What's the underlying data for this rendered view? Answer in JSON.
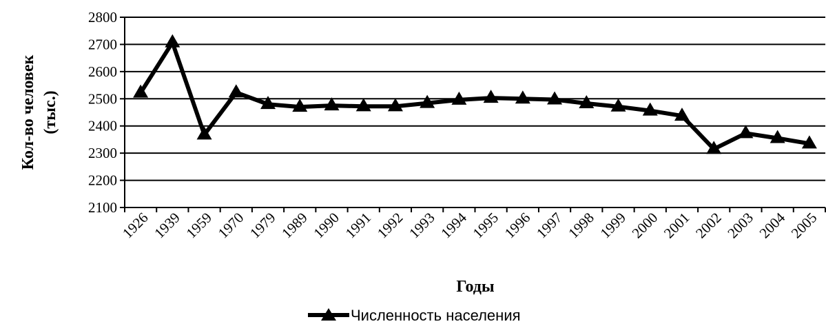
{
  "chart_data": {
    "type": "line",
    "title": "",
    "xlabel": "Годы",
    "ylabel_line1": "Кол-во человек",
    "ylabel_line2": "(тыс.)",
    "ylim": [
      2100,
      2800
    ],
    "yticks": [
      2100,
      2200,
      2300,
      2400,
      2500,
      2600,
      2700,
      2800
    ],
    "grid": true,
    "legend_position": "bottom",
    "categories": [
      "1926",
      "1939",
      "1959",
      "1970",
      "1979",
      "1989",
      "1990",
      "1991",
      "1992",
      "1993",
      "1994",
      "1995",
      "1996",
      "1997",
      "1998",
      "1999",
      "2000",
      "2001",
      "2002",
      "2003",
      "2004",
      "2005"
    ],
    "series": [
      {
        "name": "Численность населения",
        "marker": "triangle",
        "color": "#000000",
        "values": [
          2522,
          2707,
          2368,
          2523,
          2480,
          2470,
          2475,
          2472,
          2472,
          2484,
          2496,
          2503,
          2500,
          2497,
          2483,
          2471,
          2456,
          2437,
          2315,
          2373,
          2355,
          2335
        ]
      }
    ]
  }
}
